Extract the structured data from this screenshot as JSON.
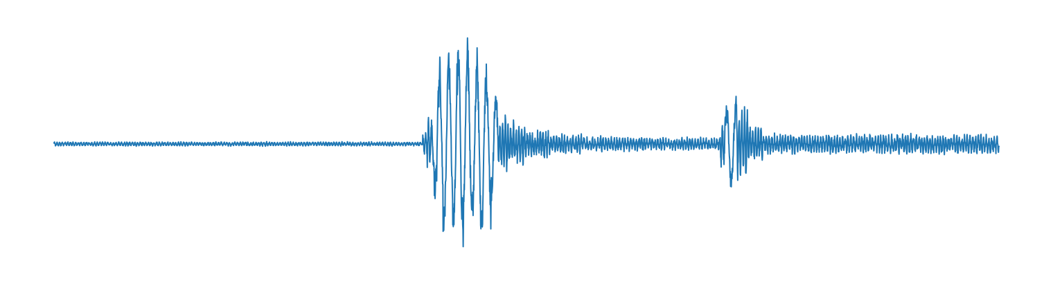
{
  "chart_data": {
    "type": "line",
    "title": "",
    "xlabel": "",
    "ylabel": "",
    "axes_visible": false,
    "grid": false,
    "legend": "none",
    "xlim": [
      0,
      2000
    ],
    "ylim": [
      -1.0,
      1.0
    ],
    "series": [
      {
        "color": "#1f77b4",
        "segments": [
          {
            "x0": 0,
            "x1": 780,
            "amp": 0.015,
            "noise": 0.006
          },
          {
            "x0": 780,
            "x1": 790,
            "amp": 0.1,
            "noise": 0.03
          },
          {
            "x0": 790,
            "x1": 800,
            "amp": 0.22,
            "noise": 0.05
          },
          {
            "x0": 800,
            "x1": 810,
            "amp": 0.45,
            "noise": 0.08
          },
          {
            "x0": 810,
            "x1": 820,
            "amp": 0.75,
            "noise": 0.08
          },
          {
            "x0": 820,
            "x1": 835,
            "amp": 0.92,
            "noise": 0.07
          },
          {
            "x0": 835,
            "x1": 850,
            "amp": 0.85,
            "noise": 0.07
          },
          {
            "x0": 850,
            "x1": 865,
            "amp": 1.0,
            "noise": 0.06
          },
          {
            "x0": 865,
            "x1": 880,
            "amp": 0.92,
            "noise": 0.06
          },
          {
            "x0": 880,
            "x1": 895,
            "amp": 0.8,
            "noise": 0.06
          },
          {
            "x0": 895,
            "x1": 910,
            "amp": 0.9,
            "noise": 0.06
          },
          {
            "x0": 910,
            "x1": 925,
            "amp": 0.72,
            "noise": 0.06
          },
          {
            "x0": 925,
            "x1": 940,
            "amp": 0.5,
            "noise": 0.06
          },
          {
            "x0": 940,
            "x1": 960,
            "amp": 0.22,
            "noise": 0.05
          },
          {
            "x0": 960,
            "x1": 1000,
            "amp": 0.16,
            "noise": 0.05
          },
          {
            "x0": 1000,
            "x1": 1050,
            "amp": 0.1,
            "noise": 0.04
          },
          {
            "x0": 1050,
            "x1": 1120,
            "amp": 0.07,
            "noise": 0.03
          },
          {
            "x0": 1120,
            "x1": 1260,
            "amp": 0.05,
            "noise": 0.025
          },
          {
            "x0": 1260,
            "x1": 1410,
            "amp": 0.045,
            "noise": 0.02
          },
          {
            "x0": 1410,
            "x1": 1420,
            "amp": 0.2,
            "noise": 0.04
          },
          {
            "x0": 1420,
            "x1": 1445,
            "amp": 0.38,
            "noise": 0.05
          },
          {
            "x0": 1445,
            "x1": 1470,
            "amp": 0.3,
            "noise": 0.05
          },
          {
            "x0": 1470,
            "x1": 1500,
            "amp": 0.13,
            "noise": 0.04
          },
          {
            "x0": 1500,
            "x1": 2000,
            "amp": 0.07,
            "noise": 0.03
          }
        ]
      }
    ]
  }
}
